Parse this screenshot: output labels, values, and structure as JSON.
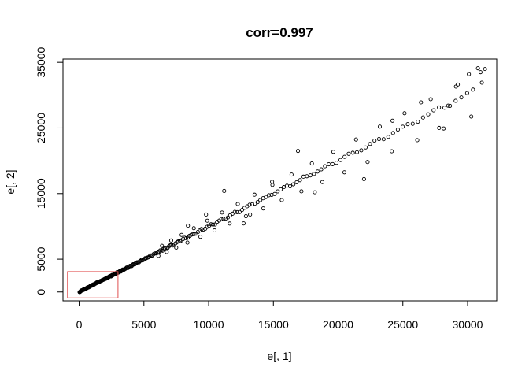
{
  "chart_data": {
    "type": "scatter",
    "title": "corr=0.997",
    "xlabel": "e[, 1]",
    "ylabel": "e[, 2]",
    "xlim": [
      -1250,
      32250
    ],
    "ylim": [
      -1350,
      35500
    ],
    "x_ticks": [
      0,
      5000,
      10000,
      15000,
      20000,
      25000,
      30000
    ],
    "y_ticks": [
      0,
      5000,
      15000,
      25000,
      35000
    ],
    "grid": false,
    "legend": "none",
    "marker": "open-circle",
    "highlight_rect": {
      "x0": -900,
      "x1": 3000,
      "y0": -900,
      "y1": 3100,
      "color": "#e05050"
    },
    "points": [
      [
        31,
        -30
      ],
      [
        45,
        -15
      ],
      [
        62,
        14
      ],
      [
        81,
        35
      ],
      [
        100,
        85
      ],
      [
        118,
        145
      ],
      [
        139,
        162
      ],
      [
        157,
        189
      ],
      [
        178,
        236
      ],
      [
        196,
        238
      ],
      [
        214,
        233
      ],
      [
        235,
        220
      ],
      [
        253,
        221
      ],
      [
        272,
        270
      ],
      [
        293,
        338
      ],
      [
        312,
        359
      ],
      [
        330,
        346
      ],
      [
        349,
        347
      ],
      [
        367,
        384
      ],
      [
        388,
        354
      ],
      [
        407,
        381
      ],
      [
        426,
        420
      ],
      [
        445,
        445
      ],
      [
        465,
        459
      ],
      [
        484,
        481
      ],
      [
        505,
        499
      ],
      [
        527,
        529
      ],
      [
        546,
        556
      ],
      [
        566,
        579
      ],
      [
        584,
        557
      ],
      [
        606,
        596
      ],
      [
        627,
        670
      ],
      [
        647,
        706
      ],
      [
        669,
        693
      ],
      [
        689,
        672
      ],
      [
        712,
        730
      ],
      [
        733,
        747
      ],
      [
        753,
        710
      ],
      [
        776,
        758
      ],
      [
        796,
        818
      ],
      [
        818,
        800
      ],
      [
        840,
        812
      ],
      [
        860,
        929
      ],
      [
        882,
        952
      ],
      [
        906,
        969
      ],
      [
        929,
        1002
      ],
      [
        950,
        937
      ],
      [
        973,
        960
      ],
      [
        996,
        1047
      ],
      [
        1018,
        1094
      ],
      [
        1043,
        1037
      ],
      [
        1065,
        1078
      ],
      [
        1090,
        1140
      ],
      [
        1113,
        1157
      ],
      [
        1137,
        1104
      ],
      [
        1162,
        1148
      ],
      [
        1186,
        1211
      ],
      [
        1209,
        1271
      ],
      [
        1235,
        1267
      ],
      [
        1260,
        1261
      ],
      [
        1284,
        1319
      ],
      [
        1310,
        1328
      ],
      [
        1335,
        1400
      ],
      [
        1362,
        1468
      ],
      [
        1387,
        1388
      ],
      [
        1413,
        1412
      ],
      [
        1439,
        1436
      ],
      [
        1465,
        1493
      ],
      [
        1492,
        1484
      ],
      [
        1520,
        1548
      ],
      [
        1546,
        1585
      ],
      [
        1574,
        1571
      ],
      [
        1601,
        1615
      ],
      [
        1629,
        1644
      ],
      [
        1658,
        1674
      ],
      [
        1687,
        1684
      ],
      [
        1715,
        1697
      ],
      [
        1743,
        1722
      ],
      [
        1773,
        1795
      ],
      [
        1802,
        1831
      ],
      [
        1832,
        1835
      ],
      [
        1862,
        1845
      ],
      [
        1892,
        1888
      ],
      [
        1923,
        1918
      ],
      [
        1954,
        1952
      ],
      [
        1985,
        2005
      ],
      [
        2017,
        1971
      ],
      [
        2049,
        2006
      ],
      [
        2080,
        2081
      ],
      [
        2113,
        2121
      ],
      [
        2147,
        2154
      ],
      [
        2180,
        2217
      ],
      [
        2213,
        2196
      ],
      [
        2248,
        2196
      ],
      [
        2282,
        2294
      ],
      [
        2317,
        2298
      ],
      [
        2353,
        2416
      ],
      [
        2390,
        2444
      ],
      [
        2425,
        2417
      ],
      [
        2463,
        2368
      ],
      [
        2501,
        2514
      ],
      [
        2538,
        2586
      ],
      [
        2577,
        2539
      ],
      [
        2616,
        2562
      ],
      [
        2656,
        2664
      ],
      [
        2695,
        2713
      ],
      [
        2736,
        2725
      ],
      [
        2776,
        2731
      ],
      [
        2818,
        2748
      ],
      [
        2861,
        2815
      ],
      [
        2902,
        2978
      ],
      [
        2946,
        3018
      ],
      [
        2989,
        2926
      ],
      [
        3033,
        2956
      ],
      [
        3078,
        3079
      ],
      [
        3123,
        3156
      ],
      [
        3169,
        3154
      ],
      [
        3216,
        3119
      ],
      [
        3263,
        3185
      ],
      [
        3311,
        3324
      ],
      [
        3359,
        3420
      ],
      [
        3408,
        3387
      ],
      [
        3458,
        3390
      ],
      [
        3508,
        3484
      ],
      [
        3560,
        3518
      ],
      [
        3611,
        3591
      ],
      [
        3663,
        3717
      ],
      [
        3716,
        3730
      ],
      [
        3771,
        3654
      ],
      [
        3826,
        3824
      ],
      [
        3881,
        3890
      ],
      [
        3937,
        3984
      ],
      [
        3994,
        3959
      ],
      [
        4053,
        3932
      ],
      [
        4111,
        4088
      ],
      [
        4171,
        4226
      ],
      [
        4231,
        4207
      ],
      [
        4293,
        4212
      ],
      [
        4355,
        4372
      ],
      [
        4419,
        4393
      ],
      [
        4482,
        4526
      ],
      [
        4548,
        4518
      ],
      [
        4614,
        4508
      ],
      [
        4681,
        4683
      ],
      [
        4748,
        4758
      ],
      [
        4818,
        4903
      ],
      [
        4888,
        4806
      ],
      [
        4959,
        4886
      ],
      [
        5031,
        5012
      ],
      [
        5104,
        5151
      ],
      [
        5178,
        5145
      ],
      [
        5254,
        5224
      ],
      [
        5331,
        5270
      ],
      [
        5409,
        5360
      ],
      [
        5487,
        5571
      ],
      [
        5567,
        5543
      ],
      [
        5648,
        5564
      ],
      [
        5731,
        5737
      ],
      [
        5815,
        5856
      ],
      [
        5900,
        5894
      ],
      [
        5986,
        5907
      ],
      [
        6074,
        5992
      ],
      [
        6163,
        6104
      ],
      [
        6253,
        6325
      ],
      [
        6345,
        6370
      ],
      [
        6438,
        6298
      ],
      [
        6532,
        6551
      ],
      [
        6628,
        6660
      ],
      [
        6726,
        6700
      ],
      [
        6825,
        6704
      ],
      [
        6926,
        6943
      ],
      [
        7028,
        7101
      ],
      [
        7132,
        7170
      ],
      [
        7237,
        7088
      ],
      [
        7344,
        7262
      ],
      [
        7453,
        7428
      ],
      [
        7564,
        7612
      ],
      [
        7675,
        7715
      ],
      [
        7791,
        7734
      ],
      [
        7906,
        7876
      ],
      [
        8024,
        8068
      ],
      [
        8143,
        8257
      ],
      [
        8265,
        8178
      ],
      [
        8388,
        8270
      ],
      [
        8514,
        8542
      ],
      [
        8641,
        8700
      ],
      [
        8771,
        8803
      ],
      [
        8902,
        8824
      ],
      [
        9036,
        8886
      ],
      [
        9171,
        9147
      ],
      [
        9309,
        9374
      ],
      [
        9449,
        9599
      ],
      [
        9591,
        9512
      ],
      [
        9736,
        9637
      ],
      [
        9883,
        9930
      ],
      [
        10032,
        10086
      ],
      [
        10183,
        10311
      ],
      [
        10337,
        10270
      ],
      [
        10493,
        10281
      ],
      [
        10652,
        10697
      ],
      [
        10814,
        10879
      ],
      [
        10978,
        11112
      ],
      [
        11145,
        11155
      ],
      [
        11314,
        11186
      ],
      [
        11487,
        11359
      ],
      [
        11661,
        11690
      ],
      [
        11839,
        11921
      ],
      [
        12020,
        12209
      ],
      [
        12203,
        12162
      ],
      [
        12390,
        12176
      ],
      [
        12579,
        12499
      ],
      [
        12771,
        12820
      ],
      [
        12967,
        13054
      ],
      [
        13165,
        13305
      ],
      [
        13367,
        13360
      ],
      [
        13572,
        13466
      ],
      [
        13780,
        13695
      ],
      [
        13991,
        14012
      ],
      [
        14205,
        14291
      ],
      [
        14424,
        14474
      ],
      [
        14645,
        14744
      ],
      [
        14869,
        14805
      ],
      [
        15098,
        14941
      ],
      [
        15330,
        15333
      ],
      [
        15565,
        15641
      ],
      [
        15804,
        15984
      ],
      [
        16047,
        16193
      ],
      [
        16294,
        16108
      ],
      [
        16544,
        16412
      ],
      [
        16799,
        16721
      ],
      [
        17058,
        17041
      ],
      [
        17320,
        17572
      ],
      [
        17587,
        17638
      ],
      [
        17858,
        17773
      ],
      [
        18134,
        17993
      ],
      [
        18413,
        18361
      ],
      [
        18697,
        18694
      ],
      [
        18985,
        19163
      ],
      [
        19279,
        19469
      ],
      [
        19576,
        19489
      ],
      [
        19878,
        19693
      ],
      [
        20185,
        20119
      ],
      [
        20496,
        20593
      ],
      [
        20812,
        21059
      ],
      [
        21133,
        21219
      ],
      [
        21458,
        21301
      ],
      [
        21788,
        21586
      ],
      [
        22124,
        22025
      ],
      [
        22464,
        22563
      ],
      [
        22810,
        23071
      ],
      [
        23160,
        23316
      ],
      [
        23515,
        23287
      ],
      [
        23877,
        23650
      ],
      [
        24243,
        24232
      ],
      [
        24615,
        24755
      ],
      [
        24991,
        25192
      ],
      [
        25375,
        25579
      ],
      [
        25762,
        25632
      ],
      [
        26157,
        25952
      ],
      [
        26556,
        26593
      ],
      [
        26961,
        27070
      ],
      [
        27373,
        27690
      ],
      [
        27790,
        28120
      ],
      [
        28212,
        28079
      ],
      [
        28641,
        28367
      ],
      [
        29076,
        29137
      ],
      [
        29517,
        29657
      ],
      [
        29964,
        30323
      ],
      [
        30417,
        30838
      ],
      [
        6123,
        5513
      ],
      [
        6393,
        7032
      ],
      [
        6763,
        6091
      ],
      [
        7109,
        7852
      ],
      [
        7494,
        6754
      ],
      [
        7912,
        8701
      ],
      [
        8362,
        7523
      ],
      [
        8856,
        9722
      ],
      [
        9364,
        8411
      ],
      [
        9894,
        10865
      ],
      [
        10454,
        9392
      ],
      [
        11033,
        12108
      ],
      [
        11625,
        10431
      ],
      [
        12250,
        13418
      ],
      [
        12881,
        11547
      ],
      [
        13544,
        14828
      ],
      [
        14219,
        12733
      ],
      [
        14925,
        16320
      ],
      [
        15649,
        14010
      ],
      [
        16403,
        17900
      ],
      [
        17165,
        15342
      ],
      [
        17974,
        19592
      ],
      [
        18779,
        16758
      ],
      [
        19633,
        21364
      ],
      [
        20484,
        18241
      ],
      [
        21385,
        23240
      ],
      [
        22275,
        19813
      ],
      [
        23220,
        25200
      ],
      [
        24144,
        21443
      ],
      [
        25131,
        27244
      ],
      [
        26113,
        23144
      ],
      [
        27151,
        29380
      ],
      [
        28153,
        24920
      ],
      [
        29245,
        31614
      ],
      [
        30283,
        26737
      ],
      [
        31347,
        33985
      ],
      [
        11200,
        15400
      ],
      [
        12700,
        10450
      ],
      [
        16900,
        21500
      ],
      [
        22000,
        17200
      ],
      [
        26400,
        28900
      ],
      [
        27800,
        25000
      ],
      [
        28500,
        28400
      ],
      [
        29100,
        31300
      ],
      [
        30100,
        33200
      ],
      [
        30800,
        34100
      ],
      [
        31000,
        33500
      ],
      [
        31100,
        31900
      ],
      [
        24200,
        26100
      ],
      [
        18200,
        15200
      ],
      [
        8400,
        10100
      ],
      [
        9800,
        11800
      ],
      [
        13200,
        11800
      ],
      [
        14900,
        16800
      ]
    ]
  }
}
